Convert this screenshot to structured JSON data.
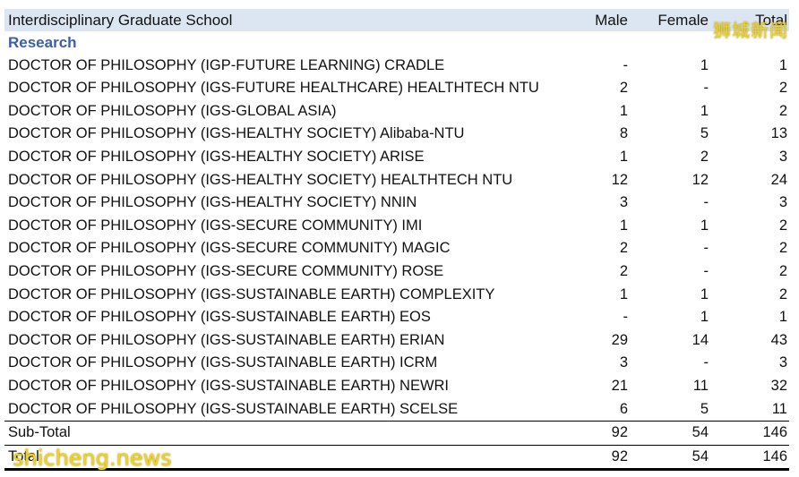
{
  "header": {
    "school": "Interdisciplinary Graduate School",
    "male": "Male",
    "female": "Female",
    "total": "Total"
  },
  "section": "Research",
  "rows": [
    {
      "program": "DOCTOR OF PHILOSOPHY (IGP-FUTURE LEARNING) CRADLE",
      "male": "-",
      "female": "1",
      "total": "1"
    },
    {
      "program": "DOCTOR OF PHILOSOPHY (IGS-FUTURE HEALTHCARE) HEALTHTECH NTU",
      "male": "2",
      "female": "-",
      "total": "2"
    },
    {
      "program": "DOCTOR OF PHILOSOPHY (IGS-GLOBAL ASIA)",
      "male": "1",
      "female": "1",
      "total": "2"
    },
    {
      "program": "DOCTOR OF PHILOSOPHY (IGS-HEALTHY SOCIETY) Alibaba-NTU",
      "male": "8",
      "female": "5",
      "total": "13"
    },
    {
      "program": "DOCTOR OF PHILOSOPHY (IGS-HEALTHY SOCIETY) ARISE",
      "male": "1",
      "female": "2",
      "total": "3"
    },
    {
      "program": "DOCTOR OF PHILOSOPHY (IGS-HEALTHY SOCIETY) HEALTHTECH NTU",
      "male": "12",
      "female": "12",
      "total": "24"
    },
    {
      "program": "DOCTOR OF PHILOSOPHY (IGS-HEALTHY SOCIETY) NNIN",
      "male": "3",
      "female": "-",
      "total": "3"
    },
    {
      "program": "DOCTOR OF PHILOSOPHY (IGS-SECURE COMMUNITY) IMI",
      "male": "1",
      "female": "1",
      "total": "2"
    },
    {
      "program": "DOCTOR OF PHILOSOPHY (IGS-SECURE COMMUNITY) MAGIC",
      "male": "2",
      "female": "-",
      "total": "2"
    },
    {
      "program": "DOCTOR OF PHILOSOPHY (IGS-SECURE COMMUNITY) ROSE",
      "male": "2",
      "female": "-",
      "total": "2"
    },
    {
      "program": "DOCTOR OF PHILOSOPHY (IGS-SUSTAINABLE EARTH) COMPLEXITY",
      "male": "1",
      "female": "1",
      "total": "2"
    },
    {
      "program": "DOCTOR OF PHILOSOPHY (IGS-SUSTAINABLE EARTH) EOS",
      "male": "-",
      "female": "1",
      "total": "1"
    },
    {
      "program": "DOCTOR OF PHILOSOPHY (IGS-SUSTAINABLE EARTH) ERIAN",
      "male": "29",
      "female": "14",
      "total": "43"
    },
    {
      "program": "DOCTOR OF PHILOSOPHY (IGS-SUSTAINABLE EARTH) ICRM",
      "male": "3",
      "female": "-",
      "total": "3"
    },
    {
      "program": "DOCTOR OF PHILOSOPHY (IGS-SUSTAINABLE EARTH) NEWRI",
      "male": "21",
      "female": "11",
      "total": "32"
    },
    {
      "program": "DOCTOR OF PHILOSOPHY (IGS-SUSTAINABLE EARTH) SCELSE",
      "male": "6",
      "female": "5",
      "total": "11"
    }
  ],
  "subtotal": {
    "label": "Sub-Total",
    "male": "92",
    "female": "54",
    "total": "146"
  },
  "total": {
    "label": "Total",
    "male": "92",
    "female": "54",
    "total": "146"
  },
  "watermarks": {
    "top": "狮城新闻",
    "bottom": "shicheng.news"
  },
  "colors": {
    "header_bg": "#dce6f2",
    "section_text": "#3b5ea8",
    "watermark": "#f2d21a"
  }
}
